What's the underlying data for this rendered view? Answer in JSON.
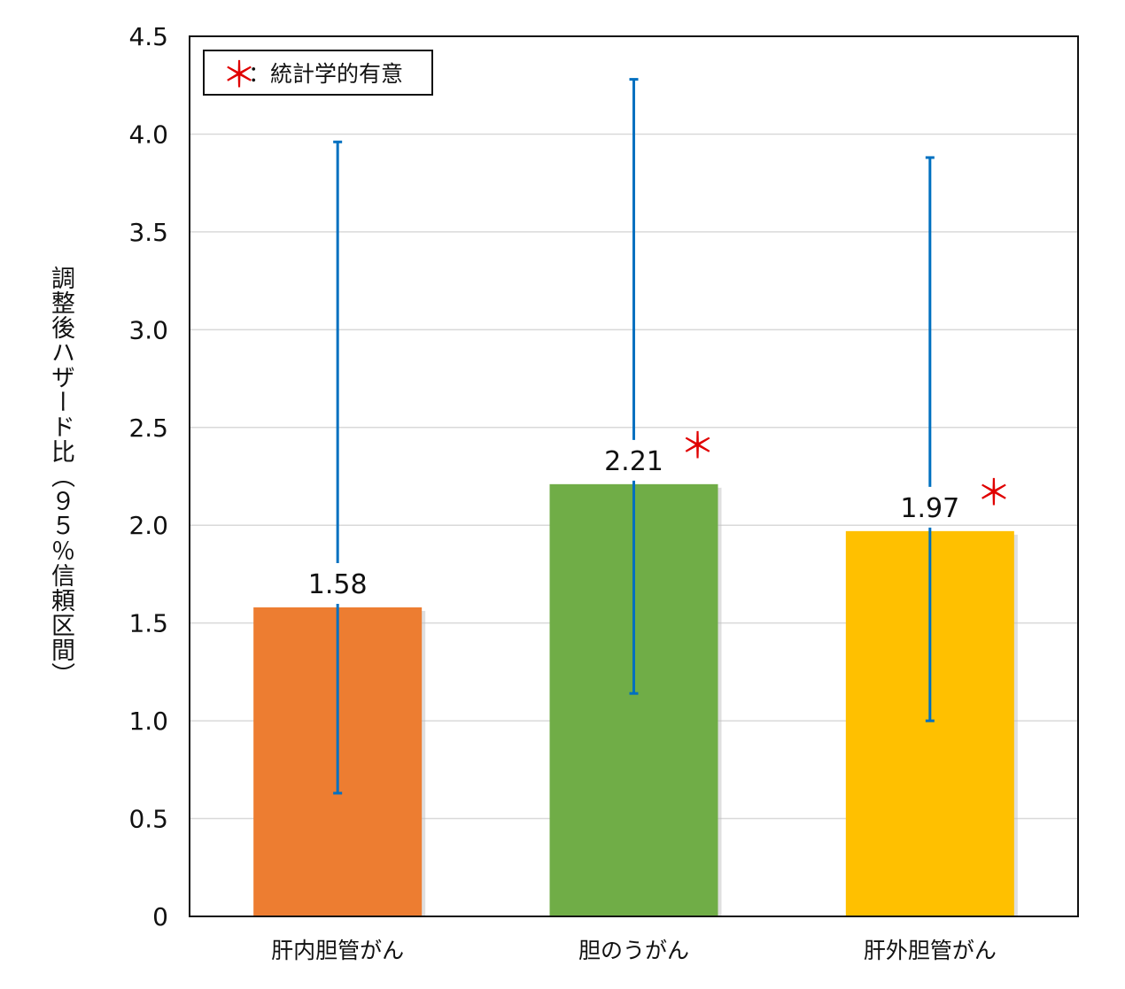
{
  "chart_data": {
    "type": "bar",
    "title": "",
    "ylabel": "調整後ハザード比（９５％信頼区間）",
    "xlabel": "",
    "ylim": [
      0,
      4.5
    ],
    "yticks": [
      "0",
      "0.5",
      "1.0",
      "1.5",
      "2.0",
      "2.5",
      "3.0",
      "3.5",
      "4.0",
      "4.5"
    ],
    "ytick_values": [
      0,
      0.5,
      1.0,
      1.5,
      2.0,
      2.5,
      3.0,
      3.5,
      4.0,
      4.5
    ],
    "grid": true,
    "categories": [
      "肝内胆管がん",
      "胆のうがん",
      "肝外胆管がん"
    ],
    "values": [
      1.58,
      2.21,
      1.97
    ],
    "value_labels": [
      "1.58",
      "2.21",
      "1.97"
    ],
    "ci_lower": [
      0.63,
      1.14,
      1.0
    ],
    "ci_upper": [
      3.96,
      4.28,
      3.88
    ],
    "significant": [
      false,
      true,
      true
    ],
    "significance_mark": "＊",
    "bar_colors": [
      "#ed7d31",
      "#70ad47",
      "#ffc000"
    ],
    "errorbar_color": "#0070c0",
    "legend": {
      "position": "top-left",
      "mark": "＊",
      "text": "：統計学的有意"
    }
  }
}
